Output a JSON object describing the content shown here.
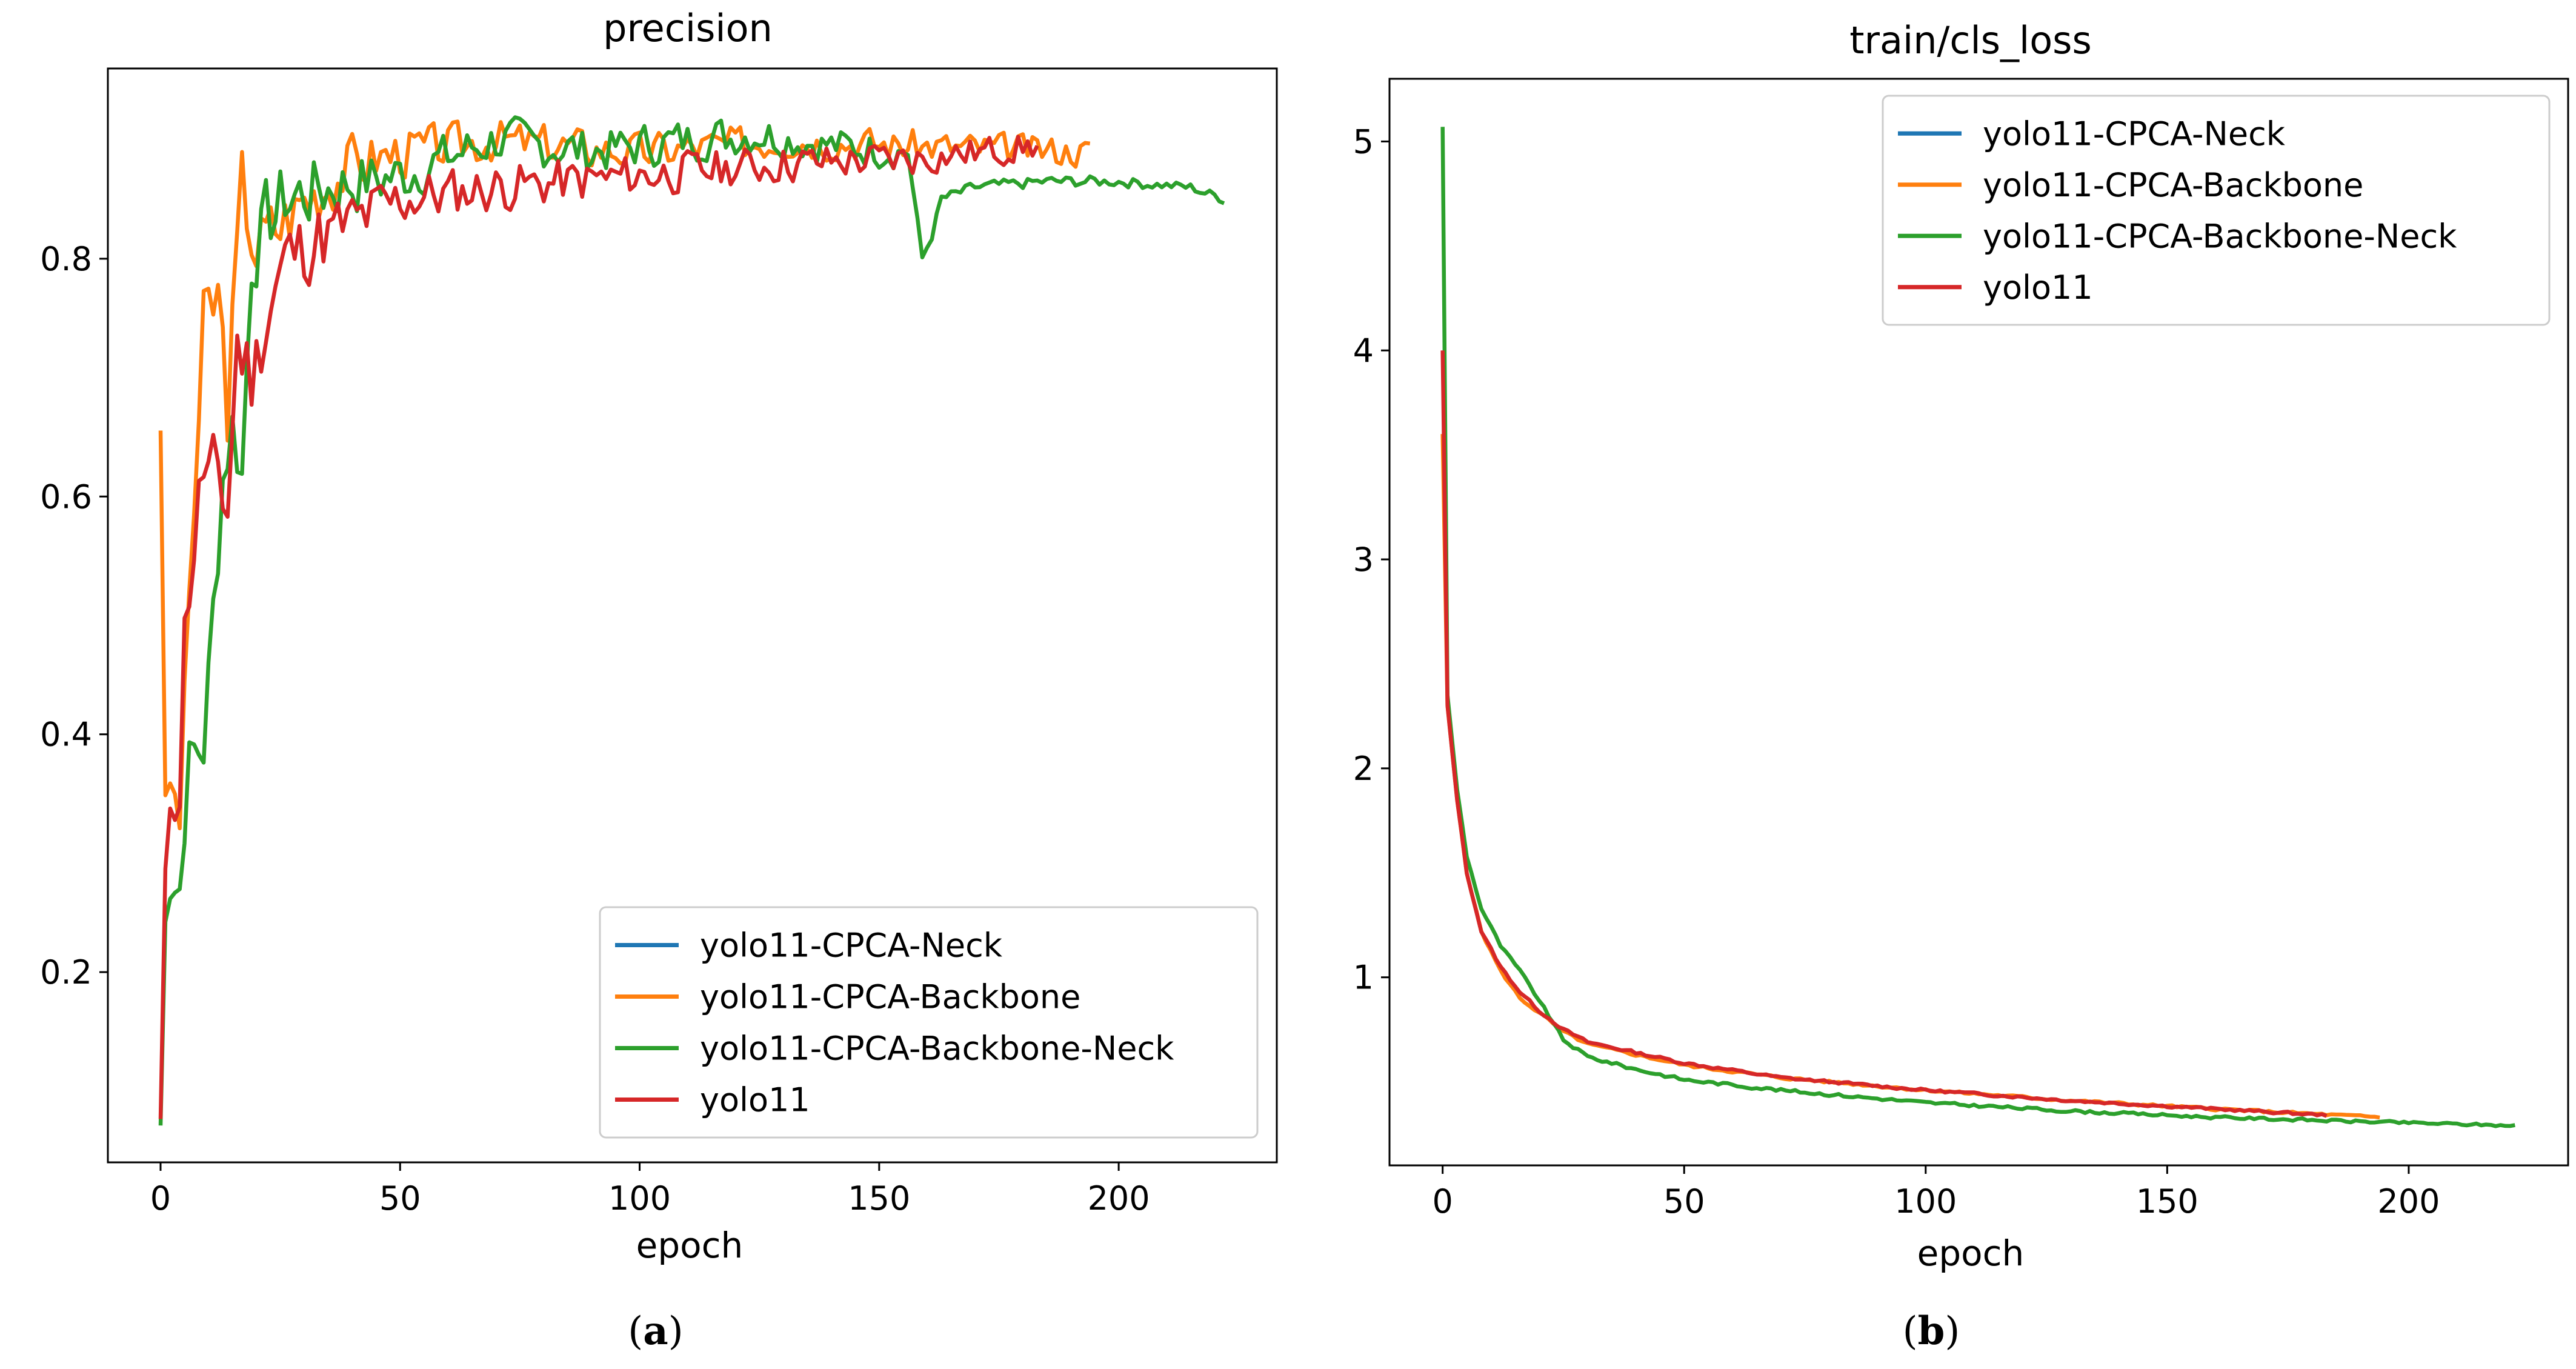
{
  "figure_captions": [
    {
      "open": "(",
      "letter": "a",
      "close": ")"
    },
    {
      "open": "(",
      "letter": "b",
      "close": ")"
    }
  ],
  "chart_data": [
    {
      "type": "line",
      "title": "precision",
      "xlabel": "epoch",
      "ylabel": "",
      "xlim": [
        -11,
        233
      ],
      "ylim": [
        0.04,
        0.96
      ],
      "xticks": [
        0,
        50,
        100,
        150,
        200
      ],
      "yticks": [
        0.2,
        0.4,
        0.6,
        0.8
      ],
      "xtick_labels": [
        "0",
        "50",
        "100",
        "150",
        "200"
      ],
      "ytick_labels": [
        "0.2",
        "0.4",
        "0.6",
        "0.8"
      ],
      "legend_position": "lower-right",
      "series": [
        {
          "name": "yolo11-CPCA-Neck",
          "color": "#1f77b4",
          "length": 0,
          "pattern": []
        },
        {
          "name": "yolo11-CPCA-Backbone",
          "color": "#ff7f0e",
          "length": 195,
          "seed": 3,
          "pattern": [
            [
              0,
              0.66
            ],
            [
              1,
              0.34
            ],
            [
              2,
              0.36
            ],
            [
              4,
              0.33
            ],
            [
              6,
              0.52
            ],
            [
              9,
              0.74
            ],
            [
              12,
              0.77
            ],
            [
              14,
              0.68
            ],
            [
              17,
              0.86
            ],
            [
              20,
              0.81
            ],
            [
              25,
              0.83
            ],
            [
              30,
              0.85
            ],
            [
              40,
              0.88
            ],
            [
              50,
              0.89
            ],
            [
              70,
              0.9
            ],
            [
              100,
              0.89
            ],
            [
              130,
              0.9
            ],
            [
              160,
              0.895
            ],
            [
              194,
              0.89
            ]
          ],
          "noise": [
            [
              0,
              0.01
            ],
            [
              10,
              0.05
            ],
            [
              30,
              0.035
            ],
            [
              60,
              0.022
            ],
            [
              120,
              0.018
            ],
            [
              194,
              0.015
            ]
          ]
        },
        {
          "name": "yolo11-CPCA-Backbone-Neck",
          "color": "#2ca02c",
          "length": 223,
          "seed": 7,
          "pattern": [
            [
              0,
              0.07
            ],
            [
              1,
              0.25
            ],
            [
              2,
              0.27
            ],
            [
              4,
              0.27
            ],
            [
              6,
              0.38
            ],
            [
              9,
              0.39
            ],
            [
              11,
              0.5
            ],
            [
              13,
              0.62
            ],
            [
              15,
              0.66
            ],
            [
              17,
              0.62
            ],
            [
              19,
              0.8
            ],
            [
              22,
              0.83
            ],
            [
              26,
              0.85
            ],
            [
              35,
              0.86
            ],
            [
              50,
              0.87
            ],
            [
              70,
              0.9
            ],
            [
              90,
              0.89
            ],
            [
              110,
              0.9
            ],
            [
              125,
              0.905
            ],
            [
              140,
              0.895
            ],
            [
              156,
              0.89
            ],
            [
              157,
              0.86
            ],
            [
              159,
              0.8
            ],
            [
              161,
              0.82
            ],
            [
              163,
              0.85
            ],
            [
              170,
              0.86
            ],
            [
              185,
              0.865
            ],
            [
              200,
              0.865
            ],
            [
              215,
              0.86
            ],
            [
              222,
              0.85
            ]
          ],
          "noise": [
            [
              0,
              0.01
            ],
            [
              10,
              0.04
            ],
            [
              25,
              0.04
            ],
            [
              60,
              0.025
            ],
            [
              155,
              0.018
            ],
            [
              157,
              0.006
            ],
            [
              222,
              0.005
            ]
          ]
        },
        {
          "name": "yolo11",
          "color": "#d62728",
          "length": 184,
          "seed": 11,
          "pattern": [
            [
              0,
              0.07
            ],
            [
              1,
              0.29
            ],
            [
              2,
              0.35
            ],
            [
              4,
              0.33
            ],
            [
              5,
              0.51
            ],
            [
              7,
              0.53
            ],
            [
              8,
              0.62
            ],
            [
              10,
              0.6
            ],
            [
              12,
              0.62
            ],
            [
              14,
              0.59
            ],
            [
              16,
              0.73
            ],
            [
              19,
              0.7
            ],
            [
              22,
              0.75
            ],
            [
              26,
              0.8
            ],
            [
              30,
              0.81
            ],
            [
              40,
              0.83
            ],
            [
              50,
              0.85
            ],
            [
              70,
              0.86
            ],
            [
              100,
              0.87
            ],
            [
              130,
              0.88
            ],
            [
              160,
              0.885
            ],
            [
              183,
              0.895
            ]
          ],
          "noise": [
            [
              0,
              0.01
            ],
            [
              10,
              0.05
            ],
            [
              30,
              0.04
            ],
            [
              60,
              0.025
            ],
            [
              120,
              0.02
            ],
            [
              183,
              0.015
            ]
          ]
        }
      ]
    },
    {
      "type": "line",
      "title": "train/cls_loss",
      "xlabel": "epoch",
      "ylabel": "",
      "xlim": [
        -11,
        233
      ],
      "ylim": [
        0.1,
        5.3
      ],
      "xticks": [
        0,
        50,
        100,
        150,
        200
      ],
      "yticks": [
        1,
        2,
        3,
        4,
        5
      ],
      "xtick_labels": [
        "0",
        "50",
        "100",
        "150",
        "200"
      ],
      "ytick_labels": [
        "1",
        "2",
        "3",
        "4",
        "5"
      ],
      "legend_position": "upper-right",
      "series": [
        {
          "name": "yolo11-CPCA-Neck",
          "color": "#1f77b4",
          "length": 0,
          "pattern": []
        },
        {
          "name": "yolo11-CPCA-Backbone",
          "color": "#ff7f0e",
          "length": 195,
          "seed": 5,
          "pattern": [
            [
              0,
              3.6
            ],
            [
              1,
              2.3
            ],
            [
              3,
              1.85
            ],
            [
              5,
              1.5
            ],
            [
              8,
              1.22
            ],
            [
              12,
              1.03
            ],
            [
              16,
              0.9
            ],
            [
              20,
              0.83
            ],
            [
              25,
              0.74
            ],
            [
              30,
              0.68
            ],
            [
              40,
              0.63
            ],
            [
              50,
              0.58
            ],
            [
              70,
              0.52
            ],
            [
              100,
              0.46
            ],
            [
              130,
              0.41
            ],
            [
              160,
              0.37
            ],
            [
              194,
              0.33
            ]
          ],
          "noise": [
            [
              0,
              0.0
            ],
            [
              10,
              0.008
            ],
            [
              194,
              0.007
            ]
          ]
        },
        {
          "name": "yolo11-CPCA-Backbone-Neck",
          "color": "#2ca02c",
          "length": 223,
          "seed": 9,
          "pattern": [
            [
              0,
              5.07
            ],
            [
              1,
              2.35
            ],
            [
              3,
              1.9
            ],
            [
              5,
              1.58
            ],
            [
              8,
              1.33
            ],
            [
              12,
              1.15
            ],
            [
              16,
              1.03
            ],
            [
              20,
              0.89
            ],
            [
              25,
              0.7
            ],
            [
              30,
              0.62
            ],
            [
              40,
              0.56
            ],
            [
              50,
              0.51
            ],
            [
              70,
              0.46
            ],
            [
              100,
              0.4
            ],
            [
              130,
              0.36
            ],
            [
              160,
              0.33
            ],
            [
              190,
              0.31
            ],
            [
              222,
              0.29
            ]
          ],
          "noise": [
            [
              0,
              0.0
            ],
            [
              10,
              0.01
            ],
            [
              222,
              0.007
            ]
          ]
        },
        {
          "name": "yolo11",
          "color": "#d62728",
          "length": 184,
          "seed": 13,
          "pattern": [
            [
              0,
              4.0
            ],
            [
              1,
              2.3
            ],
            [
              3,
              1.85
            ],
            [
              5,
              1.5
            ],
            [
              8,
              1.22
            ],
            [
              12,
              1.05
            ],
            [
              16,
              0.93
            ],
            [
              20,
              0.84
            ],
            [
              25,
              0.75
            ],
            [
              30,
              0.69
            ],
            [
              40,
              0.64
            ],
            [
              50,
              0.59
            ],
            [
              70,
              0.52
            ],
            [
              100,
              0.46
            ],
            [
              130,
              0.41
            ],
            [
              160,
              0.37
            ],
            [
              183,
              0.34
            ]
          ],
          "noise": [
            [
              0,
              0.0
            ],
            [
              10,
              0.008
            ],
            [
              183,
              0.007
            ]
          ]
        }
      ]
    }
  ]
}
